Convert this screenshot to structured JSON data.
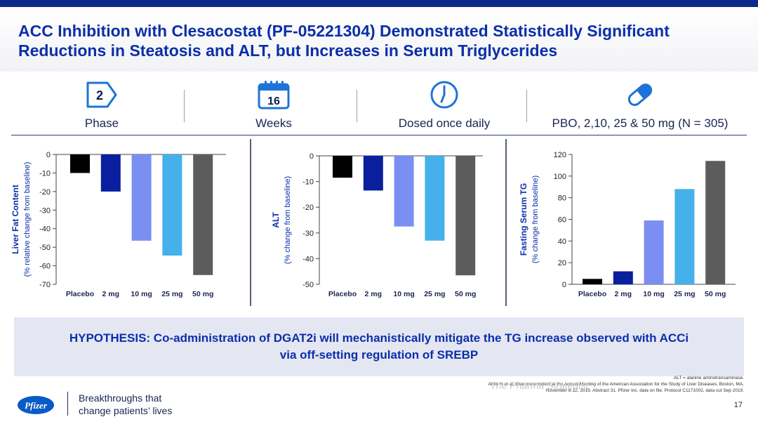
{
  "slide": {
    "title_line1": "ACC Inhibition with Clesacostat (PF-05221304) Demonstrated Statistically Significant",
    "title_line2": "Reductions in Steatosis and ALT, but Increases in Serum Triglycerides",
    "page_number": "17"
  },
  "stats": [
    {
      "icon": "chevron-tag-icon",
      "value": "2",
      "label": "Phase"
    },
    {
      "icon": "calendar-icon",
      "value": "16",
      "label": "Weeks"
    },
    {
      "icon": "clock-icon",
      "label": "Dosed once daily"
    },
    {
      "icon": "pill-icon",
      "label": "PBO, 2,10, 25 & 50 mg (N = 305)"
    }
  ],
  "colors": {
    "title": "#0b2fa8",
    "bars": [
      "#000000",
      "#0a1f9e",
      "#7b8ff2",
      "#45b0ea",
      "#5c5c5c"
    ]
  },
  "chart_data": [
    {
      "type": "bar",
      "categories": [
        "Placebo",
        "2 mg",
        "10 mg",
        "25 mg",
        "50 mg"
      ],
      "values": [
        -10,
        -20,
        -46.5,
        -54.5,
        -65
      ],
      "ylabel": "Liver Fat Content",
      "ylabel_sub": "(% relative change from baseline)",
      "ylim": [
        -70,
        0
      ],
      "ticks": [
        0,
        -10,
        -20,
        -30,
        -40,
        -50,
        -60,
        -70
      ],
      "grid": false
    },
    {
      "type": "bar",
      "categories": [
        "Placebo",
        "2 mg",
        "10 mg",
        "25 mg",
        "50 mg"
      ],
      "values": [
        -8.5,
        -13.5,
        -27.5,
        -33,
        -46.5
      ],
      "ylabel": "ALT",
      "ylabel_sub": "(% change from baseline)",
      "ylim": [
        -50,
        0
      ],
      "ticks": [
        0,
        -10,
        -20,
        -30,
        -40,
        -50
      ],
      "grid": false
    },
    {
      "type": "bar",
      "categories": [
        "Placebo",
        "2 mg",
        "10 mg",
        "25 mg",
        "50 mg"
      ],
      "values": [
        5,
        12,
        59,
        88,
        114
      ],
      "ylabel": "Fasting Serum TG",
      "ylabel_sub": "(% change from baseline)",
      "ylim": [
        0,
        120
      ],
      "ticks": [
        0,
        20,
        40,
        60,
        80,
        100,
        120
      ],
      "grid": false
    }
  ],
  "hypothesis": {
    "line1": "HYPOTHESIS: Co-administration of DGAT2i will mechanistically mitigate the TG increase observed with ACCi",
    "line2": "via off-setting regulation of SREBP"
  },
  "footnote": {
    "line1": "ALT = alanine aminotransaminase.",
    "line2": "Amin N et al. Oral presentation at the Annual Meeting of the American Association for the Study of Liver Diseases, Boston, MA,",
    "line3": "November 8-12, 2019. Abstract 31. Pfizer Inc. data on file. Protocol C1171002, data cut Sep 2019."
  },
  "footer": {
    "logo_text": "Pfizer",
    "tagline_line1": "Breakthroughs that",
    "tagline_line2": "change patients’ lives"
  },
  "watermark": "The Pharma Strategist"
}
